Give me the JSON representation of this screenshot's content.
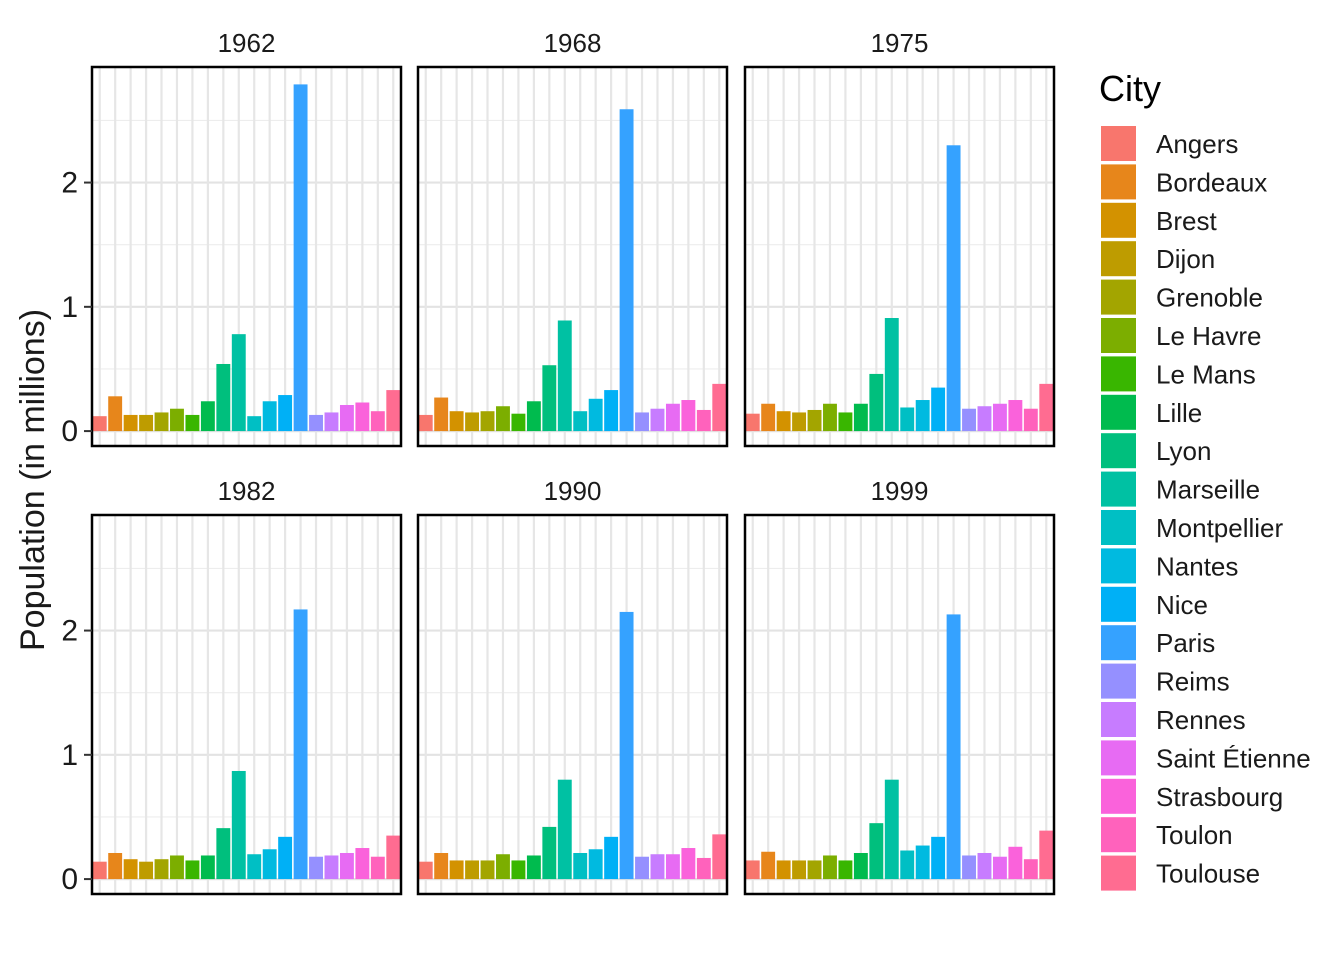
{
  "chart_data": {
    "type": "bar",
    "ylabel": "Population (in millions)",
    "xlabel": "",
    "ylim": [
      0,
      2.9
    ],
    "yticks": [
      "0",
      "1",
      "2"
    ],
    "grid": true,
    "legend_title": "City",
    "legend_position": "right",
    "categories": [
      "Angers",
      "Bordeaux",
      "Brest",
      "Dijon",
      "Grenoble",
      "Le Havre",
      "Le Mans",
      "Lille",
      "Lyon",
      "Marseille",
      "Montpellier",
      "Nantes",
      "Nice",
      "Paris",
      "Reims",
      "Rennes",
      "Saint Étienne",
      "Strasbourg",
      "Toulon",
      "Toulouse"
    ],
    "colors": [
      "#F8766D",
      "#E7861B",
      "#D39200",
      "#BE9C00",
      "#A3A500",
      "#7CAE00",
      "#39B600",
      "#00BB4E",
      "#00BF7D",
      "#00C1A3",
      "#00BFC4",
      "#00BAE0",
      "#00B0F6",
      "#35A2FF",
      "#9590FF",
      "#C77CFF",
      "#E76BF3",
      "#FA62DB",
      "#FF62BC",
      "#FF6C91"
    ],
    "panels": [
      {
        "label": "1962",
        "values": [
          0.12,
          0.28,
          0.13,
          0.13,
          0.15,
          0.18,
          0.13,
          0.24,
          0.54,
          0.78,
          0.12,
          0.24,
          0.29,
          2.79,
          0.13,
          0.15,
          0.21,
          0.23,
          0.16,
          0.33
        ]
      },
      {
        "label": "1968",
        "values": [
          0.13,
          0.27,
          0.16,
          0.15,
          0.16,
          0.2,
          0.14,
          0.24,
          0.53,
          0.89,
          0.16,
          0.26,
          0.33,
          2.59,
          0.15,
          0.18,
          0.22,
          0.25,
          0.17,
          0.38
        ]
      },
      {
        "label": "1975",
        "values": [
          0.14,
          0.22,
          0.16,
          0.15,
          0.17,
          0.22,
          0.15,
          0.22,
          0.46,
          0.91,
          0.19,
          0.25,
          0.35,
          2.3,
          0.18,
          0.2,
          0.22,
          0.25,
          0.18,
          0.38
        ]
      },
      {
        "label": "1982",
        "values": [
          0.14,
          0.21,
          0.16,
          0.14,
          0.16,
          0.19,
          0.15,
          0.19,
          0.41,
          0.87,
          0.2,
          0.24,
          0.34,
          2.17,
          0.18,
          0.19,
          0.21,
          0.25,
          0.18,
          0.35
        ]
      },
      {
        "label": "1990",
        "values": [
          0.14,
          0.21,
          0.15,
          0.15,
          0.15,
          0.2,
          0.15,
          0.19,
          0.42,
          0.8,
          0.21,
          0.24,
          0.34,
          2.15,
          0.18,
          0.2,
          0.2,
          0.25,
          0.17,
          0.36
        ]
      },
      {
        "label": "1999",
        "values": [
          0.15,
          0.22,
          0.15,
          0.15,
          0.15,
          0.19,
          0.15,
          0.21,
          0.45,
          0.8,
          0.23,
          0.27,
          0.34,
          2.13,
          0.19,
          0.21,
          0.18,
          0.26,
          0.16,
          0.39
        ]
      }
    ]
  }
}
